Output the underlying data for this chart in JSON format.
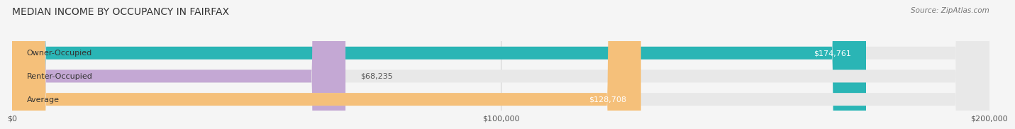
{
  "title": "MEDIAN INCOME BY OCCUPANCY IN FAIRFAX",
  "source": "Source: ZipAtlas.com",
  "categories": [
    "Owner-Occupied",
    "Renter-Occupied",
    "Average"
  ],
  "values": [
    174761,
    68235,
    128708
  ],
  "bar_colors": [
    "#2ab5b5",
    "#c4a8d4",
    "#f5c07a"
  ],
  "label_colors": [
    "#ffffff",
    "#555555",
    "#ffffff"
  ],
  "value_labels": [
    "$174,761",
    "$68,235",
    "$128,708"
  ],
  "xmax": 200000,
  "xticks": [
    0,
    100000,
    200000
  ],
  "xtick_labels": [
    "$0",
    "$100,000",
    "$200,000"
  ],
  "bar_height": 0.55,
  "background_color": "#f5f5f5",
  "bar_bg_color": "#e8e8e8"
}
